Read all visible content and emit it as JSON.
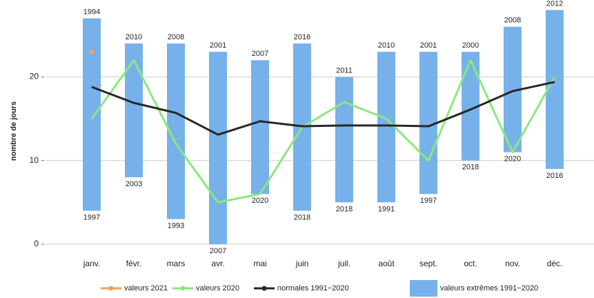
{
  "chart_data": {
    "type": "line",
    "y_label": "nombre de jours",
    "categories": [
      "janv.",
      "févr.",
      "mars",
      "avr.",
      "mai",
      "juin",
      "juil.",
      "août",
      "sept.",
      "oct.",
      "nov.",
      "déc."
    ],
    "ylim": [
      -1.8,
      29.2
    ],
    "yticks": [
      0,
      10,
      20
    ],
    "grid": true,
    "series": [
      {
        "name": "valeurs 2021",
        "type": "point",
        "color": "#f5a05a",
        "values": [
          23,
          null,
          null,
          null,
          null,
          null,
          null,
          null,
          null,
          null,
          null,
          null
        ]
      },
      {
        "name": "valeurs 2020",
        "type": "line",
        "color": "#8de67f",
        "values": [
          15,
          22,
          12,
          5,
          6,
          14,
          17,
          15,
          10,
          22,
          11,
          20
        ]
      },
      {
        "name": "normales 1991−2020",
        "type": "line",
        "color": "#262626",
        "values": [
          18.8,
          16.9,
          15.7,
          13.1,
          14.7,
          14.1,
          14.2,
          14.2,
          14.1,
          16.1,
          18.3,
          19.4
        ]
      },
      {
        "name": "valeurs extrêmes 1991−2020",
        "type": "range",
        "color": "#77b1ea",
        "low": [
          4,
          8,
          3,
          0,
          6,
          4,
          5,
          5,
          6,
          10,
          11,
          9
        ],
        "high": [
          27,
          24,
          24,
          23,
          22,
          24,
          20,
          23,
          23,
          23,
          26,
          28
        ],
        "low_years": [
          1997,
          2003,
          1993,
          2007,
          2020,
          2018,
          2018,
          1991,
          1997,
          2018,
          2020,
          2016
        ],
        "high_years": [
          1994,
          2010,
          2008,
          2001,
          2007,
          2016,
          2011,
          2010,
          2001,
          2000,
          2008,
          2012
        ]
      }
    ]
  }
}
